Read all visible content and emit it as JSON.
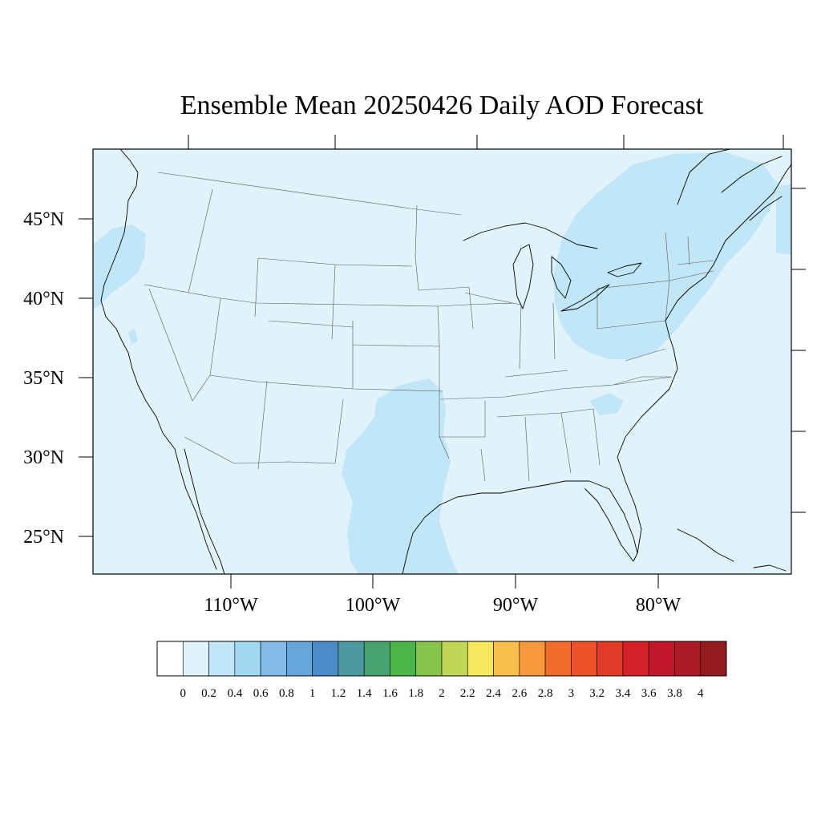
{
  "title": "Ensemble Mean 20250426 Daily AOD Forecast",
  "map_region": "Contiguous United States",
  "latitude_labels": [
    "45°N",
    "40°N",
    "35°N",
    "30°N",
    "25°N"
  ],
  "longitude_labels": [
    "110°W",
    "100°W",
    "90°W",
    "80°W"
  ],
  "background_aod_class": "0.0-0.2",
  "elevated_aod_regions": [
    {
      "region": "Northeast / Great Lakes / Ohio Valley",
      "aod_class": "0.2-0.4"
    },
    {
      "region": "Texas / Oklahoma / Gulf Coast",
      "aod_class": "0.2-0.4"
    },
    {
      "region": "Pacific Northwest coast",
      "aod_class": "0.2-0.4"
    },
    {
      "region": "Western Atlantic",
      "aod_class": "0.2-0.4"
    }
  ],
  "colorbar": {
    "colors": [
      "#ffffff",
      "#e0f3fb",
      "#c0e6f8",
      "#a0d8f2",
      "#82bce6",
      "#66a6da",
      "#4a8bc8",
      "#4b9aa0",
      "#46a470",
      "#4ab548",
      "#86c54c",
      "#c1d655",
      "#f6e75c",
      "#f7bf4a",
      "#f6983c",
      "#f26c2c",
      "#ee5229",
      "#e03b27",
      "#d32127",
      "#c0182a",
      "#ac1a25",
      "#941a1d"
    ],
    "labels": [
      "0",
      "0.2",
      "0.4",
      "0.6",
      "0.8",
      "1",
      "1.2",
      "1.4",
      "1.6",
      "1.8",
      "2",
      "2.2",
      "2.4",
      "2.6",
      "2.8",
      "3",
      "3.2",
      "3.4",
      "3.6",
      "3.8",
      "4"
    ]
  }
}
